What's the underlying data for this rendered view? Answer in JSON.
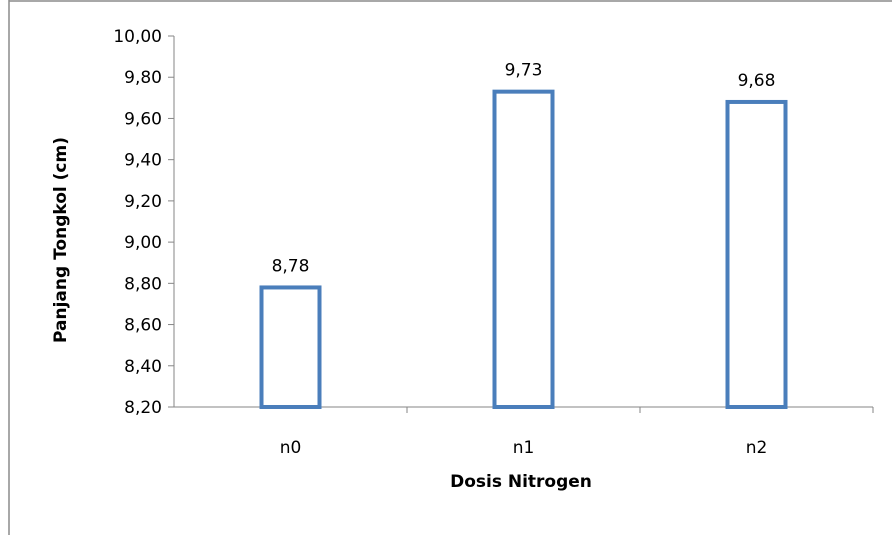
{
  "chart_data": {
    "type": "bar",
    "categories": [
      "n0",
      "n1",
      "n2"
    ],
    "values": [
      8.78,
      9.73,
      9.68
    ],
    "value_labels": [
      "8,78",
      "9,73",
      "9,68"
    ],
    "xlabel": "Dosis Nitrogen",
    "ylabel": "Panjang Tongkol (cm)",
    "ylim": [
      8.2,
      10.0
    ],
    "yticks": [
      8.2,
      8.4,
      8.6,
      8.8,
      9.0,
      9.2,
      9.4,
      9.6,
      9.8,
      10.0
    ],
    "ytick_labels": [
      "8,20",
      "8,40",
      "8,60",
      "8,80",
      "9,00",
      "9,20",
      "9,40",
      "9,60",
      "9,80",
      "10,00"
    ],
    "grid": false,
    "legend": "none",
    "bar_fill": "#ffffff",
    "bar_stroke": "#4a7ebb"
  }
}
